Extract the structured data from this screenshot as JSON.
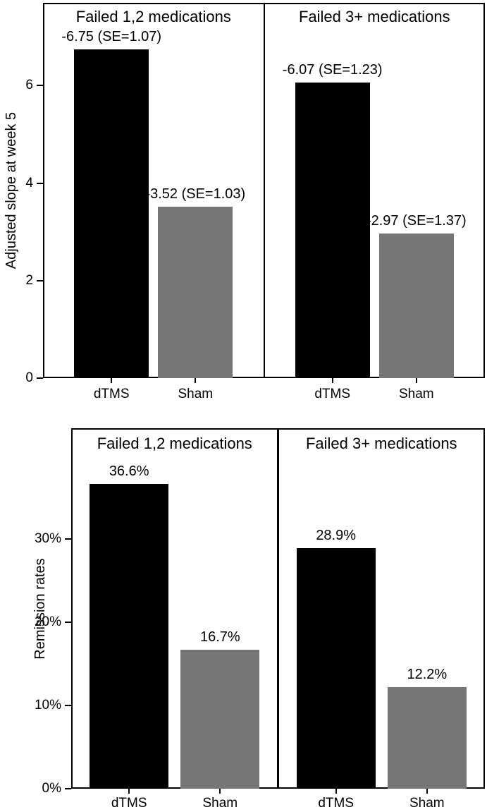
{
  "figure": {
    "background": "#ffffff",
    "text_color": "#000000"
  },
  "chart_data": [
    {
      "type": "bar",
      "title": "",
      "ylabel": "Adjusted slope at week 5",
      "xlabel": "",
      "ylim": [
        0,
        7.7
      ],
      "yticks": [
        0,
        2,
        4,
        6
      ],
      "ytick_labels": [
        "0",
        "2",
        "4",
        "6"
      ],
      "grid": false,
      "legend": "none",
      "categories": [
        "dTMS",
        "Sham"
      ],
      "bar_colors": {
        "dTMS": "#000000",
        "Sham": "#767676"
      },
      "note": "bars show magnitude of negative adjusted slopes",
      "panels": [
        {
          "title": "Failed 1,2 medications",
          "series": [
            {
              "category": "dTMS",
              "slope": -6.75,
              "se": 1.07,
              "bar_value": 6.75,
              "label": "-6.75 (SE=1.07)"
            },
            {
              "category": "Sham",
              "slope": -3.52,
              "se": 1.03,
              "bar_value": 3.52,
              "label": "-3.52 (SE=1.03)"
            }
          ]
        },
        {
          "title": "Failed 3+ medications",
          "series": [
            {
              "category": "dTMS",
              "slope": -6.07,
              "se": 1.23,
              "bar_value": 6.07,
              "label": "-6.07 (SE=1.23)"
            },
            {
              "category": "Sham",
              "slope": -2.97,
              "se": 1.37,
              "bar_value": 2.97,
              "label": "-2.97 (SE=1.37)"
            }
          ]
        }
      ]
    },
    {
      "type": "bar",
      "title": "",
      "ylabel": "Remission rates",
      "xlabel": "",
      "ylim": [
        0,
        43.3
      ],
      "yticks": [
        0,
        10,
        20,
        30
      ],
      "ytick_labels": [
        "0%",
        "10%",
        "20%",
        "30%"
      ],
      "grid": false,
      "legend": "none",
      "categories": [
        "dTMS",
        "Sham"
      ],
      "bar_colors": {
        "dTMS": "#000000",
        "Sham": "#767676"
      },
      "note": "remission rate percentages",
      "panels": [
        {
          "title": "Failed 1,2 medications",
          "series": [
            {
              "category": "dTMS",
              "bar_value": 36.6,
              "label": "36.6%"
            },
            {
              "category": "Sham",
              "bar_value": 16.7,
              "label": "16.7%"
            }
          ]
        },
        {
          "title": "Failed 3+ medications",
          "series": [
            {
              "category": "dTMS",
              "bar_value": 28.9,
              "label": "28.9%"
            },
            {
              "category": "Sham",
              "bar_value": 12.2,
              "label": "12.2%"
            }
          ]
        }
      ]
    }
  ]
}
